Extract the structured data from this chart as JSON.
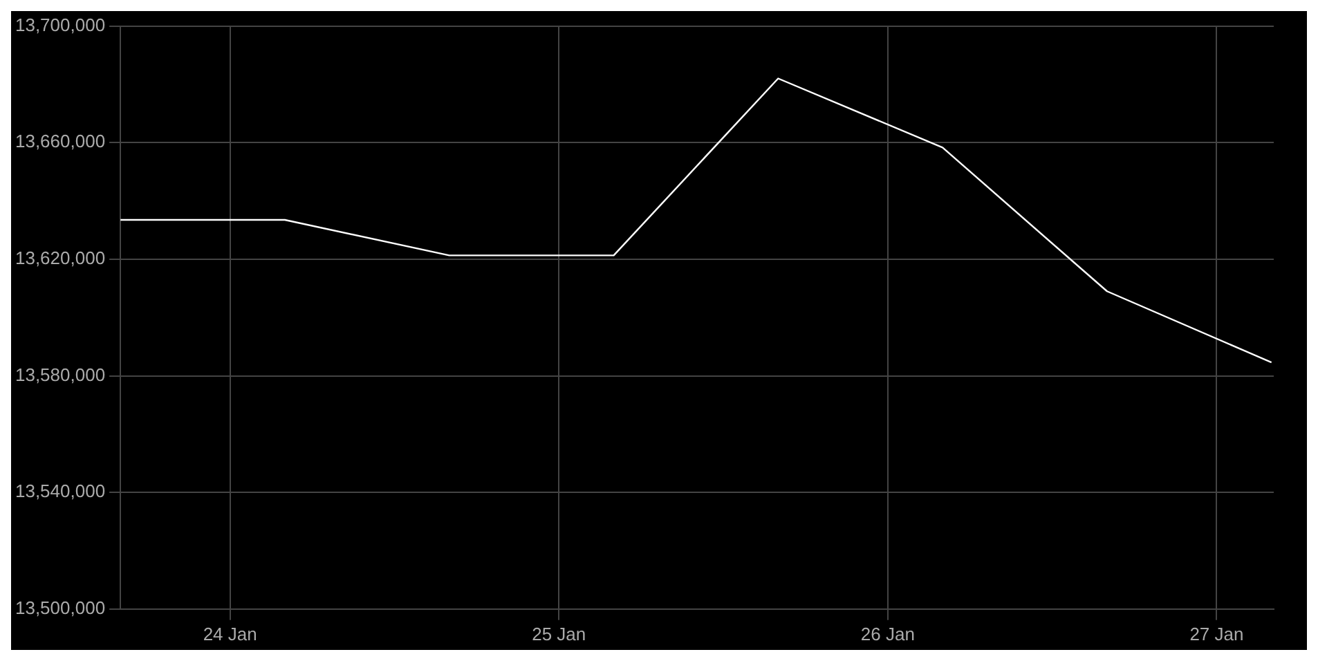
{
  "chart_data": {
    "type": "line",
    "x": [
      "--01-23T16:00",
      "--01-24T04:00",
      "--01-24T16:00",
      "--01-25T04:00",
      "--01-25T16:00",
      "--01-26T04:00",
      "--01-26T16:00",
      "--01-27T04:00"
    ],
    "series": [
      {
        "color": "#ffffff",
        "values": [
          13633500,
          13633500,
          13621300,
          13621300,
          13682000,
          13658300,
          13609000,
          13584600
        ]
      }
    ],
    "xlim": [
      "--01-23T16:00",
      "--01-27T04:10"
    ],
    "xticks": [
      {
        "value": "--01-24",
        "label": "24 Jan"
      },
      {
        "value": "--01-25",
        "label": "25 Jan"
      },
      {
        "value": "--01-26",
        "label": "26 Jan"
      },
      {
        "value": "--01-27",
        "label": "27 Jan"
      }
    ],
    "ylim": [
      13500000,
      13700000
    ],
    "yticks": [
      {
        "value": 13500000,
        "label": "13,500,000"
      },
      {
        "value": 13540000,
        "label": "13,540,000"
      },
      {
        "value": 13580000,
        "label": "13,580,000"
      },
      {
        "value": 13620000,
        "label": "13,620,000"
      },
      {
        "value": 13660000,
        "label": "13,660,000"
      },
      {
        "value": 13700000,
        "label": "13,700,000"
      }
    ],
    "grid": true,
    "legend": false,
    "marker": "none",
    "line_style": "solid"
  }
}
